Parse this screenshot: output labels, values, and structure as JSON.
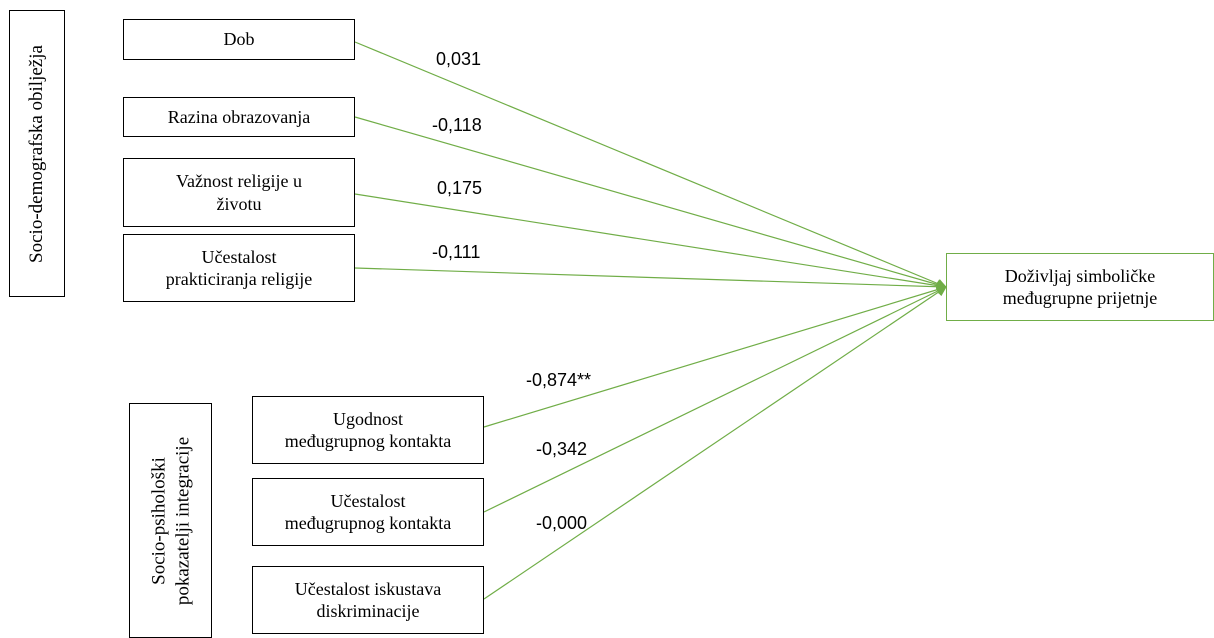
{
  "groups": {
    "socio_demographic": "Socio-demografska obilježja",
    "socio_psychological_line1": "Socio-psihološki",
    "socio_psychological_line2": "pokazatelji integracije"
  },
  "predictors": [
    {
      "line1": "Dob",
      "line2": "",
      "coefficient": "0,031"
    },
    {
      "line1": "Razina obrazovanja",
      "line2": "",
      "coefficient": "-0,118"
    },
    {
      "line1": "Važnost religije u",
      "line2": "životu",
      "coefficient": "0,175"
    },
    {
      "line1": "Učestalost",
      "line2": "prakticiranja religije",
      "coefficient": "-0,111"
    },
    {
      "line1": "Ugodnost",
      "line2": "međugrupnog kontakta",
      "coefficient": "-0,874**"
    },
    {
      "line1": "Učestalost",
      "line2": "međugrupnog kontakta",
      "coefficient": "-0,342"
    },
    {
      "line1": "Učestalost iskustava",
      "line2": "diskriminacije",
      "coefficient": "-0,000"
    }
  ],
  "outcome": {
    "line1": "Doživljaj simboličke",
    "line2": "međugrupne prijetnje"
  },
  "colors": {
    "edge": "#70ad47",
    "box_border": "#000000",
    "outcome_border": "#70ad47"
  }
}
